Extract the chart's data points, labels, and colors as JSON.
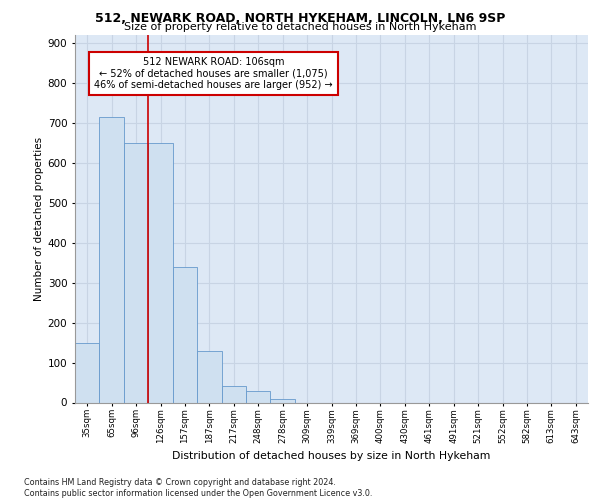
{
  "title_line1": "512, NEWARK ROAD, NORTH HYKEHAM, LINCOLN, LN6 9SP",
  "title_line2": "Size of property relative to detached houses in North Hykeham",
  "xlabel": "Distribution of detached houses by size in North Hykeham",
  "ylabel": "Number of detached properties",
  "footnote": "Contains HM Land Registry data © Crown copyright and database right 2024.\nContains public sector information licensed under the Open Government Licence v3.0.",
  "bin_labels": [
    "35sqm",
    "65sqm",
    "96sqm",
    "126sqm",
    "157sqm",
    "187sqm",
    "217sqm",
    "248sqm",
    "278sqm",
    "309sqm",
    "339sqm",
    "369sqm",
    "400sqm",
    "430sqm",
    "461sqm",
    "491sqm",
    "521sqm",
    "552sqm",
    "582sqm",
    "613sqm",
    "643sqm"
  ],
  "bar_heights": [
    150,
    715,
    650,
    650,
    338,
    130,
    42,
    30,
    10,
    0,
    0,
    0,
    0,
    0,
    0,
    0,
    0,
    0,
    0,
    0,
    0
  ],
  "bar_color": "#cfe0f0",
  "bar_edge_color": "#6699cc",
  "grid_color": "#c8d4e4",
  "background_color": "#dde8f5",
  "vline_x": 2.5,
  "vline_color": "#cc0000",
  "annotation_text": "512 NEWARK ROAD: 106sqm\n← 52% of detached houses are smaller (1,075)\n46% of semi-detached houses are larger (952) →",
  "annotation_box_color": "white",
  "annotation_box_edge": "#cc0000",
  "ylim": [
    0,
    920
  ],
  "yticks": [
    0,
    100,
    200,
    300,
    400,
    500,
    600,
    700,
    800,
    900
  ]
}
